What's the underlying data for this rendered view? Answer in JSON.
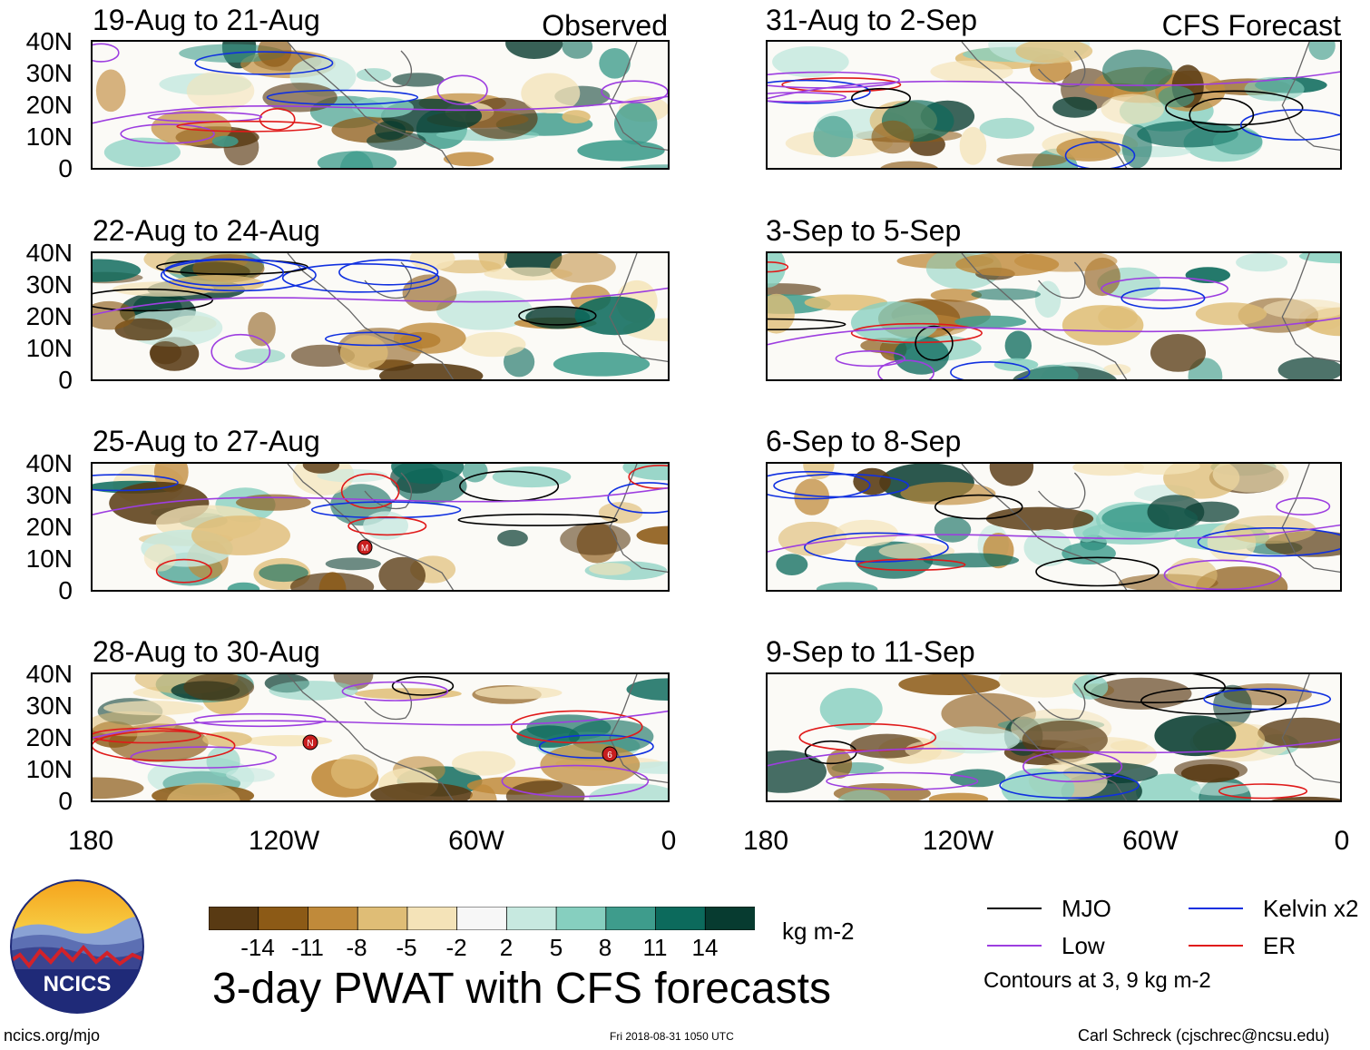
{
  "panels": [
    {
      "title": "19-Aug to 21-Aug",
      "tag": "Observed"
    },
    {
      "title": "22-Aug to 24-Aug",
      "tag": ""
    },
    {
      "title": "25-Aug to 27-Aug",
      "tag": ""
    },
    {
      "title": "28-Aug to 30-Aug",
      "tag": ""
    },
    {
      "title": "31-Aug to 2-Sep",
      "tag": "CFS Forecast"
    },
    {
      "title": "3-Sep to 5-Sep",
      "tag": ""
    },
    {
      "title": "6-Sep to 8-Sep",
      "tag": ""
    },
    {
      "title": "9-Sep to 11-Sep",
      "tag": ""
    }
  ],
  "lat_labels": [
    "40N",
    "30N",
    "20N",
    "10N",
    "0"
  ],
  "lon_labels": [
    "180",
    "120W",
    "60W",
    "0"
  ],
  "colorbar": {
    "colors": [
      "#593a13",
      "#8c5a16",
      "#c08a3a",
      "#dfbd76",
      "#f4e3b8",
      "#f7f7f7",
      "#c7e9e0",
      "#86cfbf",
      "#3e9c8c",
      "#0c6a5c",
      "#073b30"
    ],
    "ticks": [
      "-14",
      "-11",
      "-8",
      "-5",
      "-2",
      "2",
      "5",
      "8",
      "11",
      "14"
    ],
    "units": "kg m-2"
  },
  "title": "3-day PWAT with CFS forecasts",
  "legend": {
    "items": [
      {
        "label": "MJO",
        "color": "#000000"
      },
      {
        "label": "Kelvin x2",
        "color": "#1030e0"
      },
      {
        "label": "Low",
        "color": "#9d3ee0"
      },
      {
        "label": "ER",
        "color": "#e01a1a"
      }
    ],
    "note": "Contours at 3, 9 kg m-2"
  },
  "logo": {
    "text": "NCICS"
  },
  "footer": {
    "left": "ncics.org/mjo",
    "center": "Fri 2018-08-31 1050 UTC",
    "right": "Carl Schreck (cjschrec@ncsu.edu)"
  },
  "storm_markers": [
    {
      "panel": 2,
      "label": "M"
    },
    {
      "panel": 3,
      "label": "N"
    },
    {
      "panel": 3,
      "label": "6"
    }
  ]
}
